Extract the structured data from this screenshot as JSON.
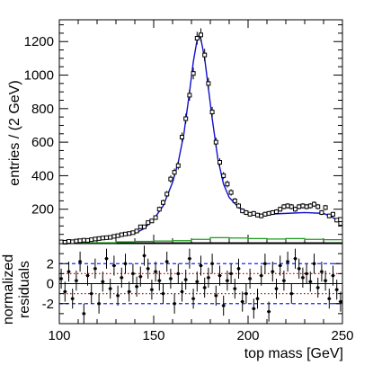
{
  "chart_data": [
    {
      "type": "scatter",
      "panel": "main",
      "ylabel": "entries / (2 GeV)",
      "xlim": [
        100,
        250
      ],
      "ylim": [
        0,
        1330
      ],
      "yticks": [
        200,
        400,
        600,
        800,
        1000,
        1200
      ],
      "colors": {
        "points": "#000000",
        "fit": "#1010cc",
        "background": "#1a9c1a"
      },
      "series": [
        {
          "role": "data-points",
          "x": [
            101,
            103,
            105,
            107,
            109,
            111,
            113,
            115,
            117,
            119,
            121,
            123,
            125,
            127,
            129,
            131,
            133,
            135,
            137,
            139,
            141,
            143,
            145,
            147,
            149,
            151,
            153,
            155,
            157,
            159,
            161,
            163,
            165,
            167,
            169,
            171,
            173,
            175,
            177,
            179,
            181,
            183,
            185,
            187,
            189,
            191,
            193,
            195,
            197,
            199,
            201,
            203,
            205,
            207,
            209,
            211,
            213,
            215,
            217,
            219,
            221,
            223,
            225,
            227,
            229,
            231,
            233,
            235,
            237,
            239,
            241,
            243,
            245,
            247,
            249
          ],
          "y": [
            5,
            3,
            8,
            6,
            10,
            12,
            15,
            14,
            18,
            22,
            25,
            28,
            30,
            32,
            38,
            42,
            48,
            52,
            55,
            60,
            70,
            95,
            95,
            120,
            130,
            150,
            200,
            240,
            290,
            380,
            420,
            460,
            630,
            740,
            880,
            1010,
            1220,
            1240,
            1120,
            950,
            780,
            600,
            480,
            400,
            350,
            300,
            250,
            220,
            190,
            180,
            170,
            175,
            165,
            160,
            170,
            175,
            180,
            185,
            200,
            215,
            220,
            215,
            200,
            215,
            220,
            215,
            220,
            230,
            215,
            180,
            210,
            160,
            170,
            135,
            115
          ]
        },
        {
          "role": "fit",
          "x": [
            100,
            110,
            120,
            130,
            140,
            145,
            150,
            155,
            160,
            163,
            166,
            169,
            171,
            173,
            174,
            175,
            177,
            179,
            181,
            184,
            187,
            190,
            195,
            200,
            205,
            210,
            220,
            230,
            240,
            245,
            250
          ],
          "y": [
            8,
            15,
            25,
            35,
            55,
            85,
            140,
            220,
            360,
            480,
            650,
            900,
            1080,
            1210,
            1240,
            1215,
            1100,
            920,
            740,
            500,
            350,
            270,
            210,
            180,
            170,
            170,
            175,
            180,
            175,
            150,
            110
          ]
        },
        {
          "role": "background",
          "x": [
            100,
            110,
            120,
            130,
            140,
            150,
            160,
            170,
            180,
            190,
            200,
            210,
            220,
            230,
            240,
            250
          ],
          "y": [
            0,
            0,
            0,
            5,
            8,
            10,
            12,
            20,
            30,
            28,
            25,
            22,
            25,
            20,
            18,
            15
          ]
        }
      ]
    },
    {
      "type": "scatter",
      "panel": "residuals",
      "xlabel": "top mass [GeV]",
      "ylabel": "normalized\nresiduals",
      "xlim": [
        100,
        250
      ],
      "ylim": [
        -4,
        4
      ],
      "yticks": [
        -2,
        0,
        2
      ],
      "xticks": [
        100,
        150,
        200,
        250
      ],
      "reference_lines": [
        {
          "y": 2,
          "color": "#2020ff",
          "style": "dashed"
        },
        {
          "y": 1,
          "color": "#dd0000",
          "style": "dotted"
        },
        {
          "y": -1,
          "color": "#dd0000",
          "style": "dotted"
        },
        {
          "y": -2,
          "color": "#2020ff",
          "style": "dashed"
        }
      ],
      "series": [
        {
          "role": "residuals",
          "x": [
            101,
            103,
            105,
            107,
            109,
            111,
            113,
            115,
            117,
            119,
            121,
            123,
            125,
            127,
            129,
            131,
            133,
            135,
            137,
            139,
            141,
            143,
            145,
            147,
            149,
            151,
            153,
            155,
            157,
            159,
            161,
            163,
            165,
            167,
            169,
            171,
            173,
            175,
            177,
            179,
            181,
            183,
            185,
            187,
            189,
            191,
            193,
            195,
            197,
            199,
            201,
            203,
            205,
            207,
            209,
            211,
            213,
            215,
            217,
            219,
            221,
            223,
            225,
            227,
            229,
            231,
            233,
            235,
            237,
            239,
            241,
            243,
            245,
            247,
            249
          ],
          "y": [
            0.5,
            -0.8,
            1.2,
            -1.5,
            0.3,
            2.2,
            -3.0,
            0.8,
            -1.0,
            1.5,
            -2.0,
            0.2,
            2.5,
            -0.5,
            1.8,
            -1.2,
            0.6,
            2.0,
            -0.8,
            1.0,
            -0.3,
            0.7,
            2.8,
            1.5,
            -0.6,
            1.2,
            0.3,
            -1.0,
            2.2,
            0.5,
            -2.0,
            1.0,
            -0.8,
            0.4,
            2.5,
            -1.5,
            0.2,
            1.8,
            -0.4,
            0.6,
            2.0,
            -1.2,
            0.8,
            -2.2,
            0.3,
            1.0,
            -0.5,
            1.5,
            -1.8,
            -1.0,
            0.5,
            -2.5,
            -1.5,
            0.8,
            2.0,
            -2.8,
            1.2,
            -0.5,
            1.8,
            0.3,
            2.2,
            -1.0,
            2.5,
            1.5,
            0.6,
            1.0,
            0.2,
            2.0,
            -0.4,
            1.2,
            0.3,
            -1.5,
            0.8,
            -0.6,
            -1.8
          ]
        }
      ]
    }
  ]
}
